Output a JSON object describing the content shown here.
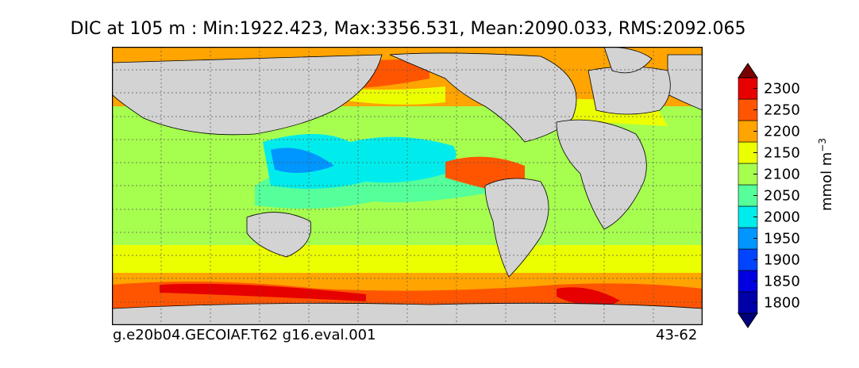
{
  "chart_data": {
    "type": "heatmap",
    "title": "DIC at 105 m : Min:1922.423, Max:3356.531, Mean:2090.033, RMS:2092.065",
    "colorbar": {
      "label": "mmol m",
      "label_superscript": "−3",
      "ticks": [
        "2300",
        "2250",
        "2200",
        "2150",
        "2100",
        "2050",
        "2000",
        "1950",
        "1900",
        "1850",
        "1800"
      ],
      "levels": [
        1775,
        1800,
        1825,
        1850,
        1875,
        1900,
        1925,
        1950,
        1975,
        2000,
        2025,
        2050,
        2075,
        2100,
        2125,
        2150,
        2175,
        2200,
        2225,
        2250,
        2275,
        2300,
        2325
      ],
      "extend": "both"
    },
    "colors": {
      "lt1775": "#00007a",
      "1775-1825": "#0000a8",
      "1825-1875": "#0000e0",
      "1875-1925": "#0044ff",
      "1925-1975": "#0096ff",
      "1975-2025": "#00ecec",
      "2025-2075": "#55ff9a",
      "2075-2125": "#a6ff4f",
      "2125-2175": "#ecff00",
      "2175-2225": "#ffa400",
      "2225-2275": "#ff5500",
      "2275-2325": "#e60000",
      "gt2325": "#7a0000",
      "land": "#d3d3d3",
      "nodata": "#ffffff"
    },
    "grid": true,
    "statistics": {
      "min": 1922.423,
      "max": 3356.531,
      "mean": 2090.033,
      "rms": 2092.065
    },
    "depth": "105 m",
    "variable": "DIC"
  },
  "footer": {
    "case": "g.e20b04.GECOIAF.T62 g16.eval.001",
    "years": "43-62"
  }
}
